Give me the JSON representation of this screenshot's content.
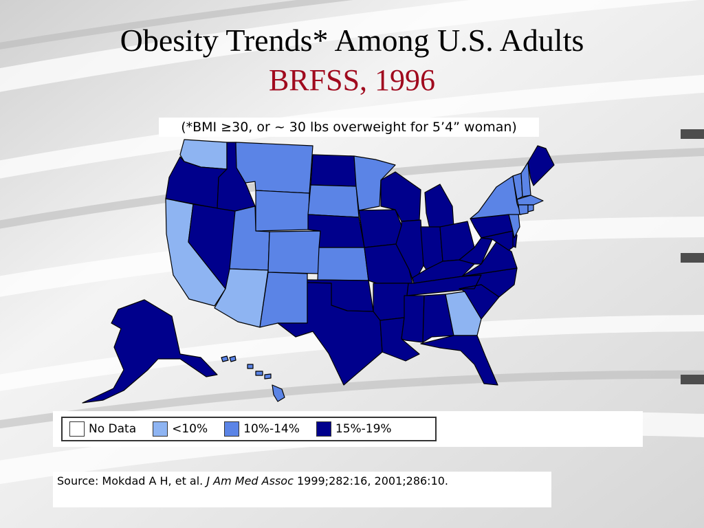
{
  "slide": {
    "title": "Obesity Trends* Among U.S. Adults",
    "subtitle": "BRFSS, 1996",
    "footnote": "(*BMI ≥30, or ~ 30 lbs overweight for 5’4” woman)"
  },
  "legend": {
    "items": [
      {
        "label": "No Data",
        "color": "#ffffff"
      },
      {
        "label": "<10%",
        "color": "#8eb4f2"
      },
      {
        "label": "10%-14%",
        "color": "#5b84e6"
      },
      {
        "label": "15%-19%",
        "color": "#00008c"
      }
    ]
  },
  "source": {
    "prefix": "Source: Mokdad A H, et al. ",
    "journal": "J Am Med Assoc",
    "suffix": " 1999;282:16, 2001;286:10."
  },
  "map_data": {
    "colors": {
      "lt10": "#8eb4f2",
      "r10_14": "#5b84e6",
      "r15_19": "#00008c",
      "border": "#000000"
    },
    "category_by_state": {
      "Washington": "lt10",
      "California": "lt10",
      "Arizona": "lt10",
      "Georgia": "lt10",
      "Montana": "r10_14",
      "Wyoming": "r10_14",
      "Utah": "r10_14",
      "Colorado": "r10_14",
      "New Mexico": "r10_14",
      "South Dakota": "r10_14",
      "Kansas": "r10_14",
      "Minnesota": "r10_14",
      "New York": "r10_14",
      "Vermont": "r10_14",
      "New Hampshire": "r10_14",
      "Massachusetts": "r10_14",
      "Connecticut": "r10_14",
      "Rhode Island": "r10_14",
      "New Jersey": "r10_14",
      "Oregon": "r15_19",
      "Idaho": "r15_19",
      "Nevada": "r15_19",
      "North Dakota": "r15_19",
      "Nebraska": "r15_19",
      "Oklahoma": "r15_19",
      "Texas": "r15_19",
      "Iowa": "r15_19",
      "Missouri": "r15_19",
      "Arkansas": "r15_19",
      "Louisiana": "r15_19",
      "Wisconsin": "r15_19",
      "Illinois": "r15_19",
      "Michigan": "r15_19",
      "Indiana": "r15_19",
      "Ohio": "r15_19",
      "Kentucky": "r15_19",
      "Tennessee": "r15_19",
      "Mississippi": "r15_19",
      "Alabama": "r15_19",
      "Florida": "r15_19",
      "South Carolina": "r15_19",
      "North Carolina": "r15_19",
      "Virginia": "r15_19",
      "West Virginia": "r15_19",
      "Maryland": "r15_19",
      "Delaware": "r15_19",
      "Pennsylvania": "r15_19",
      "Maine": "r15_19",
      "Alaska": "r15_19",
      "Hawaii": "r10_14"
    }
  }
}
